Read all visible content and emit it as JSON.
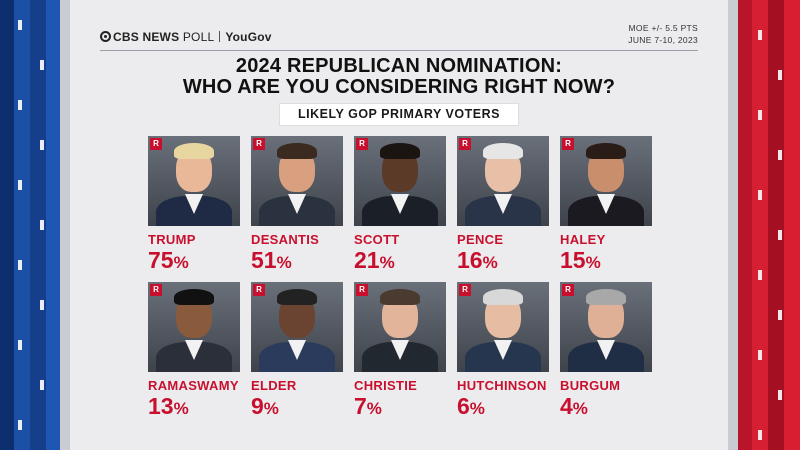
{
  "header": {
    "network": "CBS NEWS",
    "poll_word": "POLL",
    "partner": "YouGov",
    "moe": "MOE +/- 5.5 PTS",
    "dates": "JUNE 7-10, 2023"
  },
  "title_line1": "2024 REPUBLICAN NOMINATION:",
  "title_line2": "WHO ARE YOU CONSIDERING RIGHT NOW?",
  "subtitle": "LIKELY GOP PRIMARY VOTERS",
  "party_badge": "R",
  "colors": {
    "accent": "#c8102e",
    "badge": "#c8102e"
  },
  "chart_data": {
    "type": "table",
    "title": "2024 REPUBLICAN NOMINATION: WHO ARE YOU CONSIDERING RIGHT NOW?",
    "subtitle": "LIKELY GOP PRIMARY VOTERS",
    "unit": "%",
    "categories": [
      "TRUMP",
      "DESANTIS",
      "SCOTT",
      "PENCE",
      "HALEY",
      "RAMASWAMY",
      "ELDER",
      "CHRISTIE",
      "HUTCHINSON",
      "BURGUM"
    ],
    "values": [
      75,
      51,
      21,
      16,
      15,
      13,
      9,
      7,
      6,
      4
    ]
  }
}
